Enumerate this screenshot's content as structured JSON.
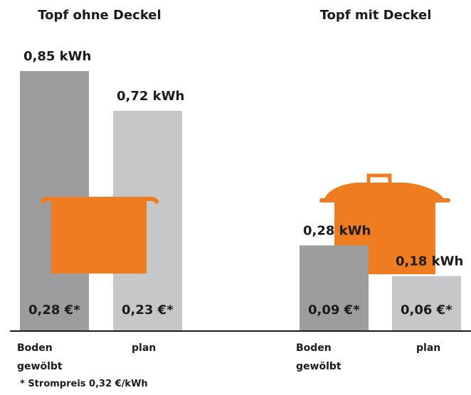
{
  "chart_data": [
    {
      "type": "bar",
      "title": "Topf ohne Deckel",
      "categories": [
        "Boden gewölbt",
        "plan"
      ],
      "values": [
        0.85,
        0.72
      ],
      "value_labels": [
        "0,85 kWh",
        "0,72 kWh"
      ],
      "cost_labels": [
        "0,28 €*",
        "0,23 €*"
      ],
      "colors": [
        "#9d9d9f",
        "#c6c7c9"
      ],
      "ylim": [
        0,
        0.85
      ]
    },
    {
      "type": "bar",
      "title": "Topf mit Deckel",
      "categories": [
        "Boden gewölbt",
        "plan"
      ],
      "values": [
        0.28,
        0.18
      ],
      "value_labels": [
        "0,28 kWh",
        "0,18 kWh"
      ],
      "cost_labels": [
        "0,09 €*",
        "0,06 €*"
      ],
      "colors": [
        "#9d9d9f",
        "#c6c7c9"
      ],
      "ylim": [
        0,
        0.85
      ]
    }
  ],
  "footnote": "* Strompreis 0,32 €/kWh"
}
